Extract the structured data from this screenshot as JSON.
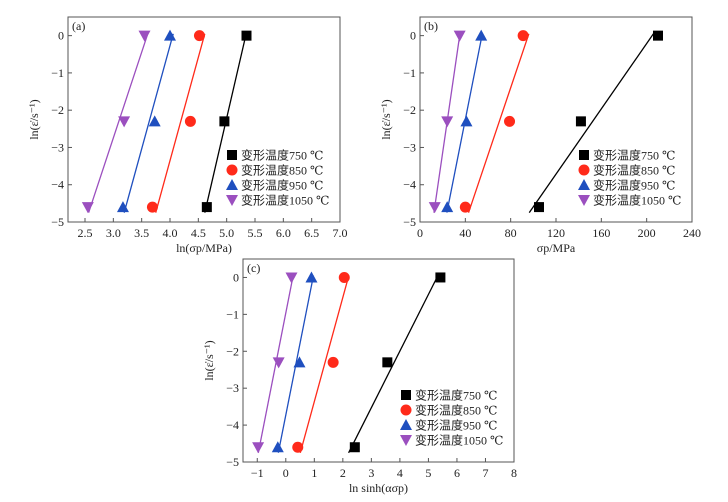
{
  "chart_data": [
    {
      "type": "scatter",
      "panel_label": "(a)",
      "xlabel": "ln(σp/MPa)",
      "ylabel": "ln(ε̇/s⁻¹)",
      "xlim": [
        2.2,
        7.0
      ],
      "ylim": [
        -5,
        0.5
      ],
      "xticks": [
        2.5,
        3.0,
        3.5,
        4.0,
        4.5,
        5.0,
        5.5,
        6.0,
        6.5,
        7.0
      ],
      "xtick_labels": [
        "2.5",
        "3.0",
        "3.5",
        "4.0",
        "4.5",
        "5.0",
        "5.5",
        "6.0",
        "6.5",
        "7.0"
      ],
      "yticks": [
        0,
        -1,
        -2,
        -3,
        -4,
        -5
      ],
      "ytick_labels": [
        "0",
        "−1",
        "−2",
        "−3",
        "−4",
        "−5"
      ],
      "legend_position": "bottom-right",
      "series": [
        {
          "name": "变形温度750 ℃",
          "marker": "square",
          "color": "#000000",
          "x": [
            5.35,
            4.96,
            4.65
          ],
          "y": [
            0,
            -2.3,
            -4.6
          ]
        },
        {
          "name": "变形温度850 ℃",
          "marker": "circle",
          "color": "#ff2a1a",
          "x": [
            4.52,
            4.36,
            3.69
          ],
          "y": [
            0,
            -2.3,
            -4.6
          ]
        },
        {
          "name": "变形温度950 ℃",
          "marker": "triangle-up",
          "color": "#1f4fbf",
          "x": [
            4.0,
            3.73,
            3.17
          ],
          "y": [
            0,
            -2.3,
            -4.6
          ]
        },
        {
          "name": "变形温度1050 ℃",
          "marker": "triangle-down",
          "color": "#9b4fbf",
          "x": [
            3.55,
            3.19,
            2.55
          ],
          "y": [
            0,
            -2.3,
            -4.6
          ]
        }
      ]
    },
    {
      "type": "scatter",
      "panel_label": "(b)",
      "xlabel": "σp/MPa",
      "ylabel": "ln(ε̇/s⁻¹)",
      "xlim": [
        0,
        240
      ],
      "ylim": [
        -5,
        0.5
      ],
      "xticks": [
        0,
        40,
        80,
        120,
        160,
        200,
        240
      ],
      "xtick_labels": [
        "0",
        "40",
        "80",
        "120",
        "160",
        "200",
        "240"
      ],
      "yticks": [
        0,
        -1,
        -2,
        -3,
        -4,
        -5
      ],
      "ytick_labels": [
        "0",
        "−1",
        "−2",
        "−3",
        "−4",
        "−5"
      ],
      "legend_position": "bottom-right",
      "series": [
        {
          "name": "变形温度750 ℃",
          "marker": "square",
          "color": "#000000",
          "x": [
            210,
            142,
            105
          ],
          "y": [
            0,
            -2.3,
            -4.6
          ]
        },
        {
          "name": "变形温度850 ℃",
          "marker": "circle",
          "color": "#ff2a1a",
          "x": [
            91,
            79,
            40
          ],
          "y": [
            0,
            -2.3,
            -4.6
          ]
        },
        {
          "name": "变形温度950 ℃",
          "marker": "triangle-up",
          "color": "#1f4fbf",
          "x": [
            54,
            41,
            24
          ],
          "y": [
            0,
            -2.3,
            -4.6
          ]
        },
        {
          "name": "变形温度1050 ℃",
          "marker": "triangle-down",
          "color": "#9b4fbf",
          "x": [
            35,
            24,
            13
          ],
          "y": [
            0,
            -2.3,
            -4.6
          ]
        }
      ]
    },
    {
      "type": "scatter",
      "panel_label": "(c)",
      "xlabel": "ln sinh(ασp)",
      "ylabel": "ln(ε̇/s⁻¹)",
      "xlim": [
        -1.5,
        8
      ],
      "ylim": [
        -5,
        0.5
      ],
      "xticks": [
        -1,
        0,
        1,
        2,
        3,
        4,
        5,
        6,
        7,
        8
      ],
      "xtick_labels": [
        "−1",
        "0",
        "1",
        "2",
        "3",
        "4",
        "5",
        "6",
        "7",
        "8"
      ],
      "yticks": [
        0,
        -1,
        -2,
        -3,
        -4,
        -5
      ],
      "ytick_labels": [
        "0",
        "−1",
        "−2",
        "−3",
        "−4",
        "−5"
      ],
      "legend_position": "bottom-right",
      "series": [
        {
          "name": "变形温度750 ℃",
          "marker": "square",
          "color": "#000000",
          "x": [
            5.42,
            3.56,
            2.42
          ],
          "y": [
            0,
            -2.3,
            -4.6
          ]
        },
        {
          "name": "变形温度850 ℃",
          "marker": "circle",
          "color": "#ff2a1a",
          "x": [
            2.05,
            1.66,
            0.42
          ],
          "y": [
            0,
            -2.3,
            -4.6
          ]
        },
        {
          "name": "变形温度950 ℃",
          "marker": "triangle-up",
          "color": "#1f4fbf",
          "x": [
            0.9,
            0.48,
            -0.28
          ],
          "y": [
            0,
            -2.3,
            -4.6
          ]
        },
        {
          "name": "变形温度1050 ℃",
          "marker": "triangle-down",
          "color": "#9b4fbf",
          "x": [
            0.2,
            -0.25,
            -0.97
          ],
          "y": [
            0,
            -2.3,
            -4.6
          ]
        }
      ]
    }
  ]
}
